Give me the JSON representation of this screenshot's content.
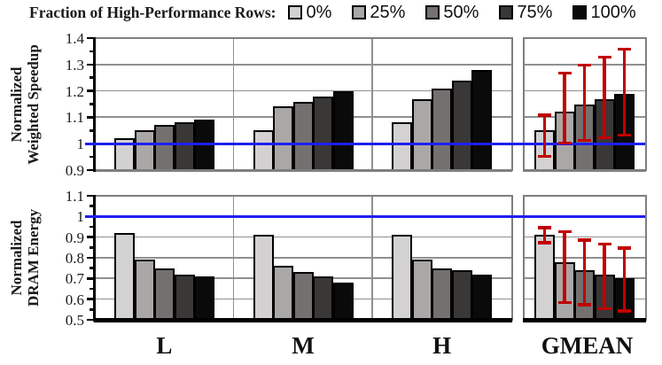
{
  "legend": {
    "title": "Fraction of High-Performance Rows:",
    "items": [
      {
        "label": "0%",
        "color": "#d3d1d1"
      },
      {
        "label": "25%",
        "color": "#aaa7a7"
      },
      {
        "label": "50%",
        "color": "#757070"
      },
      {
        "label": "75%",
        "color": "#3a3737"
      },
      {
        "label": "100%",
        "color": "#0a0a0a"
      }
    ]
  },
  "colors": {
    "reference_line": "#1f1fee",
    "error_bar": "#c00000",
    "grid": "#909090",
    "panel_border": "#7f7f7f",
    "bar_border": "#000000",
    "axis": "#000000"
  },
  "x_categories": [
    "L",
    "M",
    "H",
    "GMEAN"
  ],
  "chart_data": [
    {
      "type": "bar",
      "title": "",
      "ylabel": "Normalized Weighted Speedup",
      "ylabel_lines": [
        "Normalized",
        "Weighted Speedup"
      ],
      "ylim": [
        0.9,
        1.4
      ],
      "yticks": [
        0.9,
        1.0,
        1.1,
        1.2,
        1.3,
        1.4
      ],
      "ytick_labels": [
        "0.9",
        "1",
        "1.1",
        "1.2",
        "1.3",
        "1.4"
      ],
      "grid": true,
      "reference_y": 1.0,
      "categories": [
        "L",
        "M",
        "H",
        "GMEAN"
      ],
      "series": [
        {
          "name": "0%",
          "values": [
            1.02,
            1.05,
            1.08,
            1.05
          ]
        },
        {
          "name": "25%",
          "values": [
            1.05,
            1.14,
            1.17,
            1.12
          ]
        },
        {
          "name": "50%",
          "values": [
            1.07,
            1.16,
            1.21,
            1.15
          ]
        },
        {
          "name": "75%",
          "values": [
            1.08,
            1.18,
            1.24,
            1.17
          ]
        },
        {
          "name": "100%",
          "values": [
            1.09,
            1.2,
            1.28,
            1.19
          ]
        }
      ],
      "error_bars": {
        "category": "GMEAN",
        "low": [
          0.95,
          1.0,
          1.01,
          1.02,
          1.03
        ],
        "high": [
          1.11,
          1.27,
          1.3,
          1.33,
          1.36
        ]
      }
    },
    {
      "type": "bar",
      "title": "",
      "ylabel": "Normalized DRAM Energy",
      "ylabel_lines": [
        "Normalized",
        "DRAM Energy"
      ],
      "ylim": [
        0.5,
        1.1
      ],
      "yticks": [
        0.5,
        0.6,
        0.7,
        0.8,
        0.9,
        1.0,
        1.1
      ],
      "ytick_labels": [
        "0.5",
        "0.6",
        "0.7",
        "0.8",
        "0.9",
        "1",
        "1.1"
      ],
      "grid": true,
      "reference_y": 1.0,
      "categories": [
        "L",
        "M",
        "H",
        "GMEAN"
      ],
      "series": [
        {
          "name": "0%",
          "values": [
            0.92,
            0.91,
            0.91,
            0.91
          ]
        },
        {
          "name": "25%",
          "values": [
            0.79,
            0.76,
            0.79,
            0.78
          ]
        },
        {
          "name": "50%",
          "values": [
            0.75,
            0.73,
            0.75,
            0.74
          ]
        },
        {
          "name": "75%",
          "values": [
            0.72,
            0.71,
            0.74,
            0.72
          ]
        },
        {
          "name": "100%",
          "values": [
            0.71,
            0.68,
            0.72,
            0.7
          ]
        }
      ],
      "error_bars": {
        "category": "GMEAN",
        "low": [
          0.87,
          0.58,
          0.57,
          0.55,
          0.54
        ],
        "high": [
          0.95,
          0.93,
          0.89,
          0.87,
          0.85
        ]
      }
    }
  ]
}
